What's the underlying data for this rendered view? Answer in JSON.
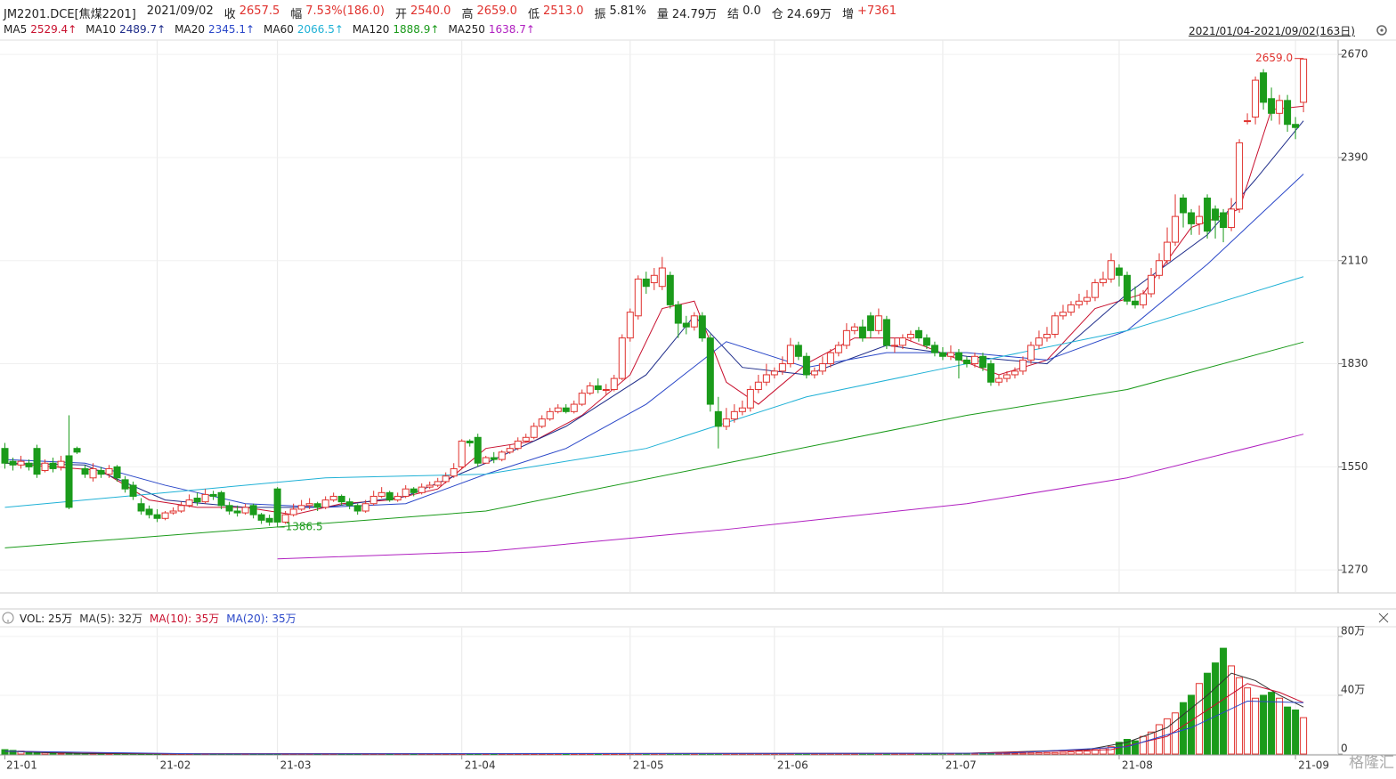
{
  "header": {
    "symbol": "JM2201.DCE[焦煤2201]",
    "date": "2021/09/02",
    "quote": [
      {
        "label": "收",
        "value": "2657.5",
        "color": "#e0322e"
      },
      {
        "label": "幅",
        "value": "7.53%(186.0)",
        "color": "#e0322e"
      },
      {
        "label": "开",
        "value": "2540.0",
        "color": "#e0322e"
      },
      {
        "label": "高",
        "value": "2659.0",
        "color": "#e0322e"
      },
      {
        "label": "低",
        "value": "2513.0",
        "color": "#e0322e"
      },
      {
        "label": "振",
        "value": "5.81%",
        "color": "#222"
      },
      {
        "label": "量",
        "value": "24.79万",
        "color": "#222"
      },
      {
        "label": "结",
        "value": "0.0",
        "color": "#222"
      },
      {
        "label": "仓",
        "value": "24.69万",
        "color": "#222"
      },
      {
        "label": "增",
        "value": "+7361",
        "color": "#e0322e"
      }
    ],
    "range": "2021/01/04-2021/09/02(163日)",
    "watermark": "格隆汇"
  },
  "chart_data": [
    {
      "type": "candlestick",
      "up_color": "#e0322e",
      "down_color": "#1b9b1b",
      "grid": true,
      "xlim": [
        0,
        163
      ],
      "xticks": [
        {
          "value": 0,
          "label": "21-01"
        },
        {
          "value": 19,
          "label": "21-02"
        },
        {
          "value": 34,
          "label": "21-03"
        },
        {
          "value": 57,
          "label": "21-04"
        },
        {
          "value": 78,
          "label": "21-05"
        },
        {
          "value": 96,
          "label": "21-06"
        },
        {
          "value": 117,
          "label": "21-07"
        },
        {
          "value": 139,
          "label": "21-08"
        },
        {
          "value": 161,
          "label": "21-09"
        }
      ],
      "ylim": [
        1210,
        2709
      ],
      "yticks": [
        1270,
        1550,
        1830,
        2110,
        2390,
        2670
      ],
      "open": [
        1600,
        1565,
        1555,
        1560,
        1600,
        1540,
        1560,
        1550,
        1580,
        1600,
        1545,
        1520,
        1540,
        1530,
        1550,
        1515,
        1500,
        1450,
        1435,
        1420,
        1410,
        1425,
        1430,
        1445,
        1465,
        1455,
        1475,
        1480,
        1445,
        1430,
        1425,
        1445,
        1420,
        1410,
        1490,
        1400,
        1420,
        1435,
        1445,
        1450,
        1440,
        1460,
        1470,
        1455,
        1445,
        1430,
        1450,
        1470,
        1480,
        1460,
        1470,
        1490,
        1480,
        1495,
        1500,
        1510,
        1525,
        1550,
        1620,
        1630,
        1560,
        1575,
        1570,
        1590,
        1600,
        1620,
        1630,
        1660,
        1680,
        1700,
        1710,
        1700,
        1720,
        1750,
        1770,
        1760,
        1760,
        1790,
        1900,
        1960,
        2060,
        2050,
        2040,
        2070,
        1990,
        1940,
        1930,
        1960,
        1900,
        1700,
        1660,
        1680,
        1700,
        1710,
        1760,
        1780,
        1800,
        1810,
        1830,
        1880,
        1850,
        1800,
        1810,
        1830,
        1860,
        1880,
        1920,
        1930,
        1960,
        1920,
        1950,
        1880,
        1880,
        1900,
        1920,
        1900,
        1880,
        1860,
        1850,
        1860,
        1840,
        1830,
        1850,
        1830,
        1780,
        1790,
        1800,
        1810,
        1840,
        1880,
        1900,
        1910,
        1960,
        1970,
        1990,
        2000,
        2010,
        2050,
        2060,
        2090,
        2070,
        2000,
        1990,
        2020,
        2070,
        2110,
        2160,
        2280,
        2240,
        2210,
        2280,
        2250,
        2240,
        2200,
        2250,
        2490,
        2500,
        2620,
        2550,
        2510,
        2545,
        2480,
        2540
      ],
      "high": [
        1615,
        1575,
        1580,
        1570,
        1610,
        1570,
        1575,
        1580,
        1690,
        1605,
        1555,
        1560,
        1550,
        1555,
        1555,
        1525,
        1510,
        1465,
        1445,
        1435,
        1430,
        1440,
        1455,
        1475,
        1480,
        1490,
        1485,
        1485,
        1455,
        1445,
        1450,
        1450,
        1425,
        1420,
        1495,
        1430,
        1450,
        1460,
        1465,
        1455,
        1470,
        1480,
        1475,
        1465,
        1450,
        1460,
        1485,
        1495,
        1485,
        1480,
        1500,
        1495,
        1505,
        1510,
        1520,
        1535,
        1560,
        1625,
        1625,
        1640,
        1580,
        1590,
        1595,
        1610,
        1630,
        1640,
        1670,
        1690,
        1710,
        1720,
        1720,
        1730,
        1760,
        1780,
        1790,
        1775,
        1800,
        1910,
        1980,
        2070,
        2080,
        2090,
        2120,
        2080,
        2000,
        1960,
        1970,
        1970,
        1910,
        1740,
        1710,
        1720,
        1730,
        1770,
        1800,
        1830,
        1820,
        1850,
        1900,
        1890,
        1860,
        1820,
        1850,
        1870,
        1890,
        1940,
        1940,
        1950,
        1970,
        1980,
        1960,
        1900,
        1910,
        1920,
        1930,
        1910,
        1890,
        1875,
        1880,
        1870,
        1850,
        1860,
        1860,
        1840,
        1800,
        1810,
        1820,
        1850,
        1890,
        1920,
        1930,
        1970,
        1990,
        2000,
        2020,
        2030,
        2060,
        2080,
        2130,
        2100,
        2080,
        2040,
        2030,
        2090,
        2130,
        2200,
        2290,
        2290,
        2250,
        2260,
        2290,
        2260,
        2250,
        2280,
        2440,
        2510,
        2610,
        2630,
        2580,
        2560,
        2560,
        2500,
        2659.0
      ],
      "low": [
        1545,
        1540,
        1545,
        1540,
        1520,
        1535,
        1535,
        1540,
        1435,
        1585,
        1520,
        1510,
        1520,
        1520,
        1510,
        1480,
        1460,
        1420,
        1410,
        1400,
        1405,
        1420,
        1425,
        1440,
        1445,
        1450,
        1460,
        1435,
        1420,
        1415,
        1420,
        1410,
        1395,
        1390,
        1386.5,
        1395,
        1415,
        1430,
        1435,
        1430,
        1435,
        1455,
        1445,
        1435,
        1420,
        1425,
        1445,
        1465,
        1455,
        1455,
        1465,
        1470,
        1475,
        1490,
        1495,
        1505,
        1520,
        1545,
        1605,
        1550,
        1560,
        1560,
        1565,
        1585,
        1595,
        1615,
        1625,
        1655,
        1675,
        1695,
        1695,
        1695,
        1715,
        1745,
        1750,
        1745,
        1755,
        1785,
        1890,
        1950,
        2020,
        2030,
        2030,
        1980,
        1900,
        1910,
        1920,
        1890,
        1700,
        1600,
        1650,
        1670,
        1690,
        1700,
        1750,
        1770,
        1790,
        1800,
        1820,
        1840,
        1790,
        1790,
        1800,
        1820,
        1850,
        1870,
        1910,
        1890,
        1900,
        1910,
        1870,
        1860,
        1870,
        1890,
        1890,
        1870,
        1850,
        1840,
        1840,
        1790,
        1820,
        1820,
        1810,
        1770,
        1770,
        1780,
        1790,
        1800,
        1830,
        1870,
        1890,
        1900,
        1950,
        1960,
        1980,
        1990,
        2000,
        2040,
        2050,
        2040,
        1990,
        1980,
        1980,
        2010,
        2060,
        2100,
        2150,
        2200,
        2180,
        2180,
        2170,
        2170,
        2160,
        2190,
        2240,
        2480,
        2480,
        2520,
        2490,
        2480,
        2460,
        2440,
        2513.0
      ],
      "close": [
        1560,
        1555,
        1565,
        1550,
        1530,
        1560,
        1545,
        1565,
        1440,
        1590,
        1530,
        1545,
        1530,
        1545,
        1520,
        1490,
        1470,
        1430,
        1420,
        1410,
        1425,
        1430,
        1445,
        1460,
        1455,
        1475,
        1470,
        1445,
        1430,
        1425,
        1440,
        1420,
        1405,
        1400,
        1400,
        1420,
        1435,
        1445,
        1450,
        1440,
        1460,
        1470,
        1455,
        1445,
        1430,
        1450,
        1470,
        1480,
        1460,
        1470,
        1490,
        1480,
        1495,
        1500,
        1510,
        1525,
        1545,
        1620,
        1615,
        1560,
        1575,
        1570,
        1590,
        1600,
        1620,
        1630,
        1660,
        1680,
        1700,
        1710,
        1700,
        1720,
        1750,
        1770,
        1760,
        1760,
        1790,
        1900,
        1970,
        2060,
        2040,
        2070,
        2090,
        1990,
        1940,
        1930,
        1960,
        1900,
        1720,
        1660,
        1680,
        1700,
        1710,
        1760,
        1780,
        1800,
        1810,
        1830,
        1880,
        1850,
        1800,
        1810,
        1830,
        1860,
        1880,
        1920,
        1930,
        1900,
        1920,
        1960,
        1880,
        1880,
        1900,
        1910,
        1900,
        1880,
        1860,
        1850,
        1860,
        1840,
        1830,
        1850,
        1820,
        1780,
        1790,
        1800,
        1810,
        1840,
        1880,
        1900,
        1910,
        1960,
        1970,
        1990,
        2000,
        2010,
        2050,
        2060,
        2110,
        2070,
        2000,
        1990,
        2020,
        2070,
        2110,
        2160,
        2230,
        2240,
        2210,
        2230,
        2190,
        2220,
        2200,
        2250,
        2430,
        2490,
        2600,
        2540,
        2510,
        2545,
        2480,
        2471.5,
        2657.5
      ],
      "annotations": [
        {
          "value": 2659.0,
          "label": "2659.0"
        },
        {
          "value": 1386.5,
          "label": "1386.5"
        }
      ],
      "series": [
        {
          "name": "MA5",
          "last": "2529.4↑",
          "color": "#c8102e",
          "x": [
            0,
            6,
            12,
            18,
            24,
            30,
            36,
            42,
            48,
            54,
            60,
            66,
            72,
            78,
            82,
            86,
            90,
            94,
            100,
            106,
            112,
            118,
            124,
            130,
            136,
            142,
            148,
            154,
            158,
            162
          ],
          "values": [
            1560,
            1550,
            1540,
            1460,
            1440,
            1440,
            1420,
            1450,
            1460,
            1490,
            1600,
            1620,
            1690,
            1800,
            1980,
            2000,
            1780,
            1720,
            1830,
            1900,
            1900,
            1850,
            1800,
            1840,
            1980,
            2020,
            2200,
            2250,
            2520,
            2529.4
          ]
        },
        {
          "name": "MA10",
          "last": "2489.7↑",
          "color": "#1f2d8a",
          "x": [
            0,
            10,
            20,
            30,
            40,
            50,
            60,
            70,
            80,
            86,
            92,
            100,
            110,
            120,
            130,
            140,
            150,
            156,
            162
          ],
          "values": [
            1560,
            1555,
            1460,
            1440,
            1440,
            1470,
            1560,
            1660,
            1800,
            1960,
            1820,
            1800,
            1880,
            1850,
            1830,
            2020,
            2180,
            2330,
            2489.7
          ]
        },
        {
          "name": "MA20",
          "last": "2345.1↑",
          "color": "#2a47c8",
          "x": [
            0,
            10,
            20,
            30,
            40,
            50,
            60,
            70,
            80,
            90,
            100,
            110,
            120,
            130,
            140,
            150,
            162
          ],
          "values": [
            1570,
            1560,
            1500,
            1450,
            1440,
            1450,
            1530,
            1600,
            1720,
            1890,
            1820,
            1860,
            1860,
            1840,
            1920,
            2100,
            2345.1
          ]
        },
        {
          "name": "MA60",
          "last": "2066.5↑",
          "color": "#1fb1d6",
          "x": [
            0,
            20,
            40,
            60,
            80,
            100,
            120,
            140,
            162
          ],
          "values": [
            1440,
            1480,
            1520,
            1530,
            1600,
            1740,
            1830,
            1920,
            2066.5
          ]
        },
        {
          "name": "MA120",
          "last": "1888.9↑",
          "color": "#1a9a1a",
          "x": [
            0,
            30,
            60,
            90,
            120,
            140,
            162
          ],
          "values": [
            1330,
            1380,
            1430,
            1560,
            1690,
            1760,
            1888.9
          ]
        },
        {
          "name": "MA250",
          "last": "1638.7↑",
          "color": "#b020c0",
          "x": [
            34,
            60,
            90,
            120,
            140,
            162
          ],
          "values": [
            1300,
            1320,
            1380,
            1450,
            1520,
            1638.7
          ]
        }
      ]
    },
    {
      "type": "volume",
      "name": "VOL: 25万",
      "ylim": [
        0,
        86
      ],
      "yticks": [
        {
          "value": 0,
          "label": "0"
        },
        {
          "value": 40,
          "label": "40万"
        },
        {
          "value": 80,
          "label": "80万"
        }
      ],
      "values": [
        3,
        2.5,
        2,
        1.6,
        1.3,
        1,
        0.8,
        0.6,
        0.5,
        0.4,
        0.3,
        0.3,
        0.2,
        0.2,
        0.2,
        0.2,
        0.2,
        0.1,
        0.1,
        0.1,
        0.1,
        0.1,
        0.1,
        0.1,
        0.1,
        0.1,
        0.1,
        0.1,
        0.1,
        0.1,
        0.1,
        0.1,
        0.1,
        0.1,
        0.1,
        0.1,
        0.1,
        0.1,
        0.1,
        0.1,
        0.1,
        0.1,
        0.1,
        0.1,
        0.1,
        0.1,
        0.1,
        0.1,
        0.1,
        0.1,
        0.1,
        0.1,
        0.1,
        0.1,
        0.1,
        0.1,
        0.1,
        0.1,
        0.1,
        0.1,
        0.1,
        0.1,
        0.1,
        0.1,
        0.1,
        0.1,
        0.1,
        0.1,
        0.1,
        0.1,
        0.1,
        0.1,
        0.1,
        0.1,
        0.1,
        0.1,
        0.1,
        0.1,
        0.2,
        0.2,
        0.2,
        0.2,
        0.2,
        0.2,
        0.2,
        0.2,
        0.2,
        0.2,
        0.2,
        0.2,
        0.2,
        0.2,
        0.2,
        0.2,
        0.2,
        0.2,
        0.2,
        0.2,
        0.2,
        0.2,
        0.2,
        0.2,
        0.2,
        0.2,
        0.2,
        0.2,
        0.2,
        0.2,
        0.2,
        0.2,
        0.2,
        0.2,
        0.2,
        0.2,
        0.2,
        0.2,
        0.2,
        0.3,
        0.3,
        0.3,
        0.4,
        0.4,
        0.4,
        0.5,
        0.5,
        0.6,
        0.6,
        0.7,
        0.8,
        0.9,
        1,
        1,
        1.2,
        1.5,
        2,
        2,
        3,
        4,
        5,
        8,
        10,
        9,
        12,
        15,
        20,
        24,
        28,
        35,
        40,
        48,
        55,
        62,
        72,
        60,
        52,
        45,
        38,
        40,
        42,
        38,
        32,
        30,
        24.79
      ],
      "series": [
        {
          "name": "MA(5): 32万",
          "color": "#333333",
          "x": [
            0,
            5,
            10,
            20,
            120,
            135,
            140,
            145,
            150,
            153,
            156,
            159,
            162
          ],
          "values": [
            2,
            1,
            0.4,
            0.1,
            0.5,
            3,
            8,
            18,
            40,
            55,
            50,
            40,
            32
          ]
        },
        {
          "name": "MA(10): 35万",
          "color": "#c8102e",
          "x": [
            0,
            10,
            20,
            120,
            138,
            145,
            150,
            155,
            159,
            162
          ],
          "values": [
            2,
            1,
            0.2,
            0.5,
            3,
            12,
            30,
            48,
            42,
            35
          ]
        },
        {
          "name": "MA(20): 35万",
          "color": "#2a47c8",
          "x": [
            0,
            15,
            25,
            125,
            140,
            148,
            155,
            162
          ],
          "values": [
            2,
            0.8,
            0.1,
            0.6,
            5,
            18,
            36,
            35
          ]
        }
      ]
    }
  ]
}
